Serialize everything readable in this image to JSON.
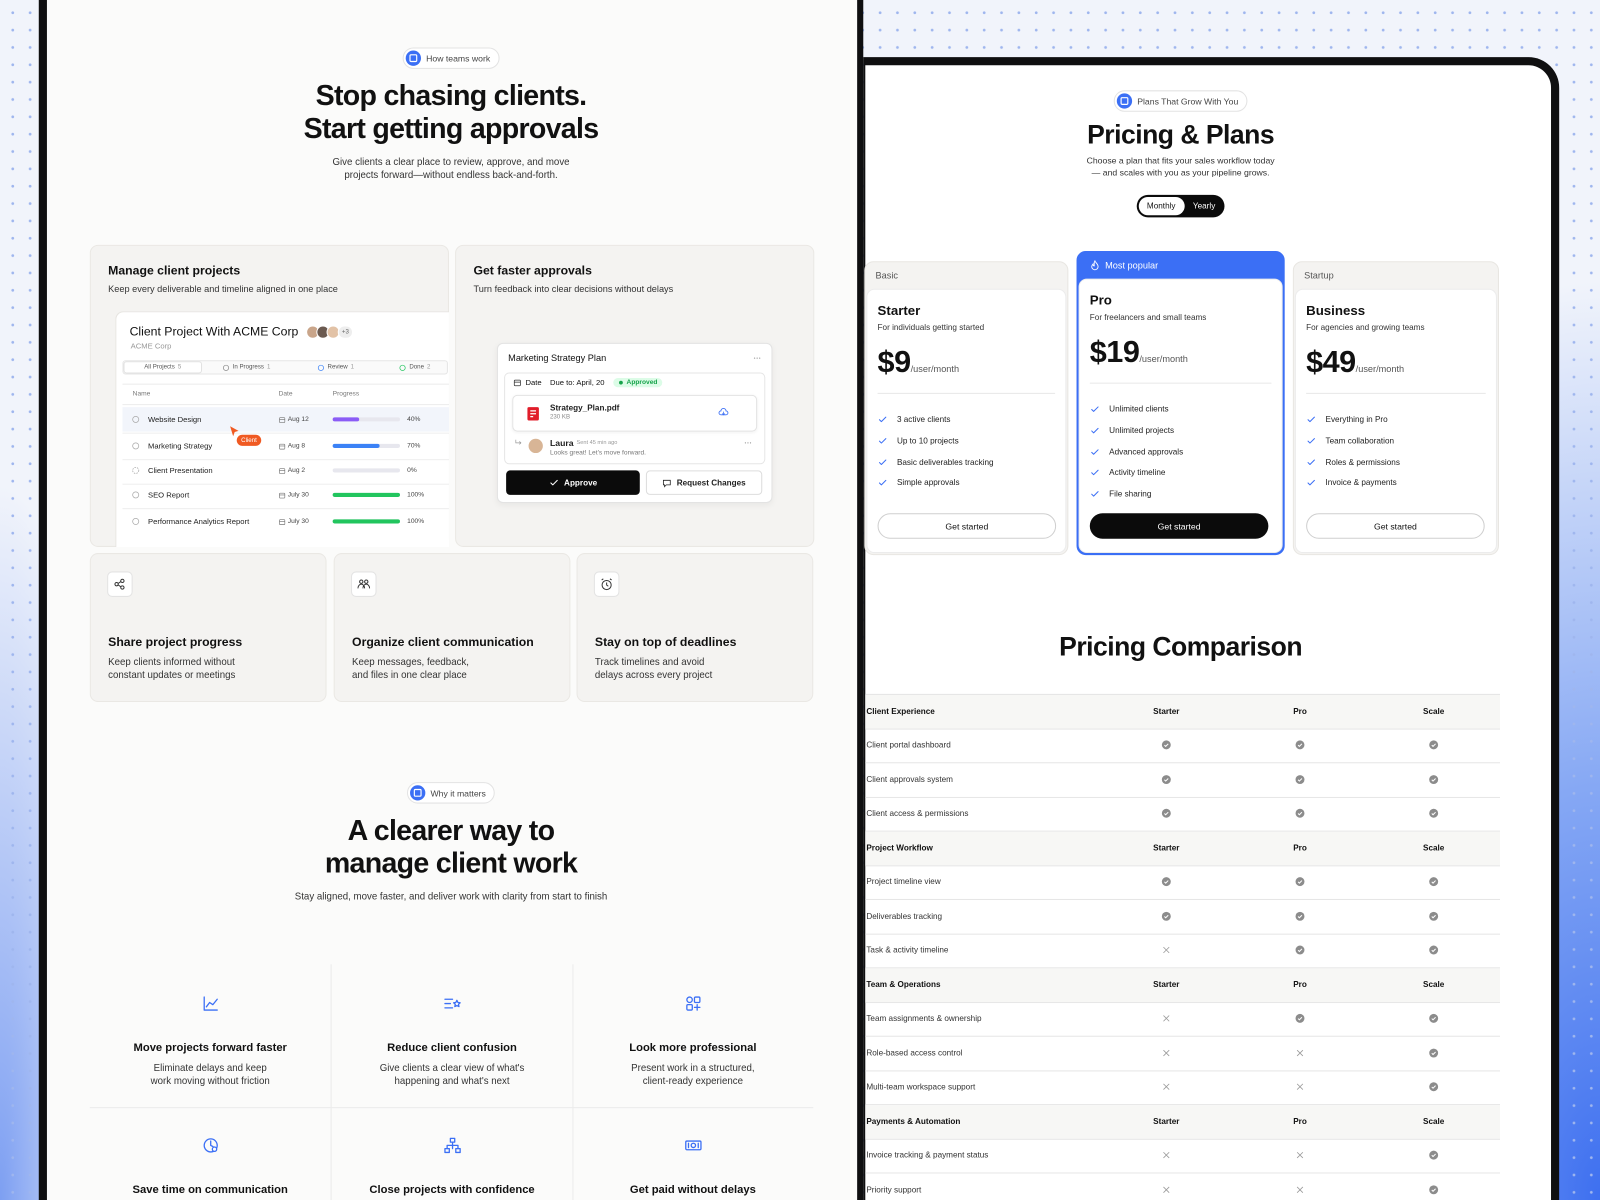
{
  "how_section": {
    "badge": "How teams work",
    "title": [
      "Stop chasing clients.",
      "Start getting approvals"
    ],
    "subtitle": [
      "Give clients a clear place to review, approve, and move",
      "projects forward—without endless back-and-forth."
    ]
  },
  "manage_card": {
    "title": "Manage client projects",
    "description": "Keep every deliverable and timeline aligned in one place",
    "project": {
      "name": "Client Project With ACME Corp",
      "company": "ACME Corp",
      "more_avatars": "+3",
      "tabs": [
        {
          "label": "All Projects",
          "count": "5"
        },
        {
          "label": "In Progress",
          "count": "1"
        },
        {
          "label": "Review",
          "count": "1"
        },
        {
          "label": "Done",
          "count": "2"
        }
      ],
      "columns": [
        "Name",
        "Date",
        "Progress"
      ],
      "rows": [
        {
          "name": "Website Design",
          "date": "Aug 12",
          "progress": 40,
          "progress_label": "40%",
          "bar_color": "#8b5cf6"
        },
        {
          "name": "Marketing Strategy",
          "date": "Aug 8",
          "progress": 70,
          "progress_label": "70%",
          "bar_color": "#3b82f6"
        },
        {
          "name": "Client Presentation",
          "date": "Aug 2",
          "progress": 0,
          "progress_label": "0%",
          "bar_color": "#3b82f6"
        },
        {
          "name": "SEO Report",
          "date": "July 30",
          "progress": 100,
          "progress_label": "100%",
          "bar_color": "#22c55e"
        },
        {
          "name": "Performance Analytics Report",
          "date": "July 30",
          "progress": 100,
          "progress_label": "100%",
          "bar_color": "#22c55e"
        }
      ],
      "cursor_tag": "Client"
    }
  },
  "approvals_card": {
    "title": "Get faster approvals",
    "description": "Turn feedback into clear decisions without delays",
    "document": {
      "title": "Marketing Strategy Plan",
      "date_label": "Date",
      "due": "Due to: April, 20",
      "status": "Approved",
      "file_name": "Strategy_Plan.pdf",
      "file_size": "230 KB",
      "comment": {
        "author": "Laura",
        "time": "Sent 45 min ago",
        "text": "Looks great! Let's move forward."
      },
      "approve_button": "Approve",
      "request_button": "Request Changes"
    }
  },
  "feature_cards": [
    {
      "title": "Share project progress",
      "description": [
        "Keep clients informed without",
        "constant updates or meetings"
      ]
    },
    {
      "title": "Organize client communication",
      "description": [
        "Keep messages, feedback,",
        "and files in one clear place"
      ]
    },
    {
      "title": "Stay on top of deadlines",
      "description": [
        "Track timelines and avoid",
        "delays across every project"
      ]
    }
  ],
  "why_section": {
    "badge": "Why it matters",
    "title": [
      "A clearer way to",
      "manage client work"
    ],
    "subtitle": "Stay aligned, move faster, and deliver work with clarity from start to finish",
    "benefits": [
      {
        "title": "Move projects forward faster",
        "description": [
          "Eliminate delays and keep",
          "work moving without friction"
        ]
      },
      {
        "title": "Reduce client confusion",
        "description": [
          "Give clients a clear view of what's",
          "happening and what's next"
        ]
      },
      {
        "title": "Look more professional",
        "description": [
          "Present work in a structured,",
          "client-ready experience"
        ]
      },
      {
        "title": "Save time on communication"
      },
      {
        "title": "Close projects with confidence"
      },
      {
        "title": "Get paid without delays"
      }
    ]
  },
  "pricing": {
    "badge": "Plans That Grow With You",
    "title": "Pricing & Plans",
    "subtitle": [
      "Choose a plan that fits your sales workflow today",
      "— and scales with you as your pipeline grows."
    ],
    "billing_toggle": [
      "Monthly",
      "Yearly"
    ],
    "plans": [
      {
        "tier": "Basic",
        "name": "Starter",
        "description": "For individuals getting started",
        "price": "$9",
        "period": "/user/month",
        "features": [
          "3 active clients",
          "Up to 10 projects",
          "Basic deliverables tracking",
          "Simple approvals"
        ],
        "button": "Get started",
        "highlighted": false
      },
      {
        "tier": "Most popular",
        "name": "Pro",
        "description": "For freelancers and small teams",
        "price": "$19",
        "period": "/user/month",
        "features": [
          "Unlimited clients",
          "Unlimited projects",
          "Advanced approvals",
          "Activity timeline",
          "File sharing"
        ],
        "button": "Get started",
        "highlighted": true
      },
      {
        "tier": "Startup",
        "name": "Business",
        "description": "For agencies and growing teams",
        "price": "$49",
        "period": "/user/month",
        "features": [
          "Everything in Pro",
          "Team collaboration",
          "Roles & permissions",
          "Invoice & payments"
        ],
        "button": "Get started",
        "highlighted": false
      }
    ]
  },
  "comparison": {
    "title": "Pricing Comparison",
    "groups": [
      {
        "title": "Client Experience",
        "columns": [
          "Starter",
          "Pro",
          "Scale"
        ],
        "rows": [
          {
            "label": "Client portal dashboard",
            "included": [
              true,
              true,
              true
            ]
          },
          {
            "label": "Client approvals system",
            "included": [
              true,
              true,
              true
            ]
          },
          {
            "label": "Client access & permissions",
            "included": [
              true,
              true,
              true
            ]
          }
        ]
      },
      {
        "title": "Project Workflow",
        "columns": [
          "Starter",
          "Pro",
          "Scale"
        ],
        "rows": [
          {
            "label": "Project timeline view",
            "included": [
              true,
              true,
              true
            ]
          },
          {
            "label": "Deliverables tracking",
            "included": [
              true,
              true,
              true
            ]
          },
          {
            "label": "Task & activity timeline",
            "included": [
              false,
              true,
              true
            ]
          }
        ]
      },
      {
        "title": "Team & Operations",
        "columns": [
          "Starter",
          "Pro",
          "Scale"
        ],
        "rows": [
          {
            "label": "Team assignments & ownership",
            "included": [
              false,
              true,
              true
            ]
          },
          {
            "label": "Role-based access control",
            "included": [
              false,
              false,
              true
            ]
          },
          {
            "label": "Multi-team workspace support",
            "included": [
              false,
              false,
              true
            ]
          }
        ]
      },
      {
        "title": "Payments & Automation",
        "columns": [
          "Starter",
          "Pro",
          "Scale"
        ],
        "rows": [
          {
            "label": "Invoice tracking & payment status",
            "included": [
              false,
              false,
              true
            ]
          },
          {
            "label": "Priority support",
            "included": [
              false,
              false,
              true
            ]
          }
        ]
      }
    ]
  }
}
